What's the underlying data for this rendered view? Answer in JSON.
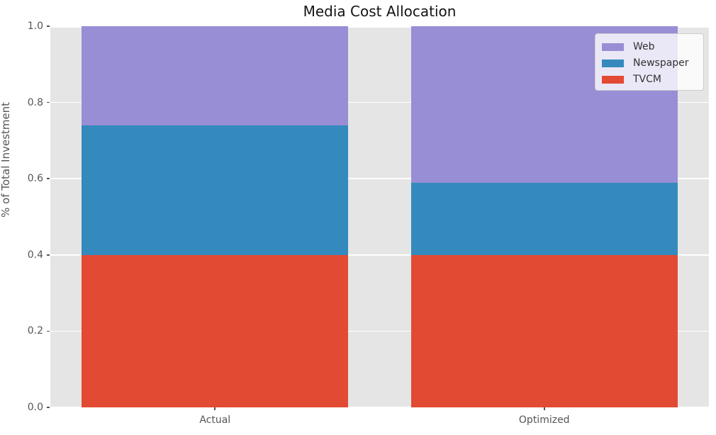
{
  "figure": {
    "background_color": "#ffffff",
    "plot_background_color": "#e5e5e5",
    "grid_color": "#ffffff",
    "tick_color": "#555555",
    "text_color": "#555555",
    "title_color": "#141414"
  },
  "chart_data": {
    "type": "bar",
    "stacked": true,
    "title": "Media Cost Allocation",
    "xlabel": "",
    "ylabel": "% of Total Investment",
    "categories": [
      "Actual",
      "Optimized"
    ],
    "series": [
      {
        "name": "TVCM",
        "color": "#E24A33",
        "values": [
          0.4,
          0.4
        ]
      },
      {
        "name": "Newspaper",
        "color": "#348ABD",
        "values": [
          0.34,
          0.19
        ]
      },
      {
        "name": "Web",
        "color": "#988ED5",
        "values": [
          0.26,
          0.41
        ]
      }
    ],
    "ylim": [
      0.0,
      1.0
    ],
    "yticks": [
      "0.0",
      "0.2",
      "0.4",
      "0.6",
      "0.8",
      "1.0"
    ],
    "grid": true,
    "bar_width_fraction": 0.81,
    "legend": {
      "position": "upper right",
      "entries": [
        "Web",
        "Newspaper",
        "TVCM"
      ]
    }
  }
}
